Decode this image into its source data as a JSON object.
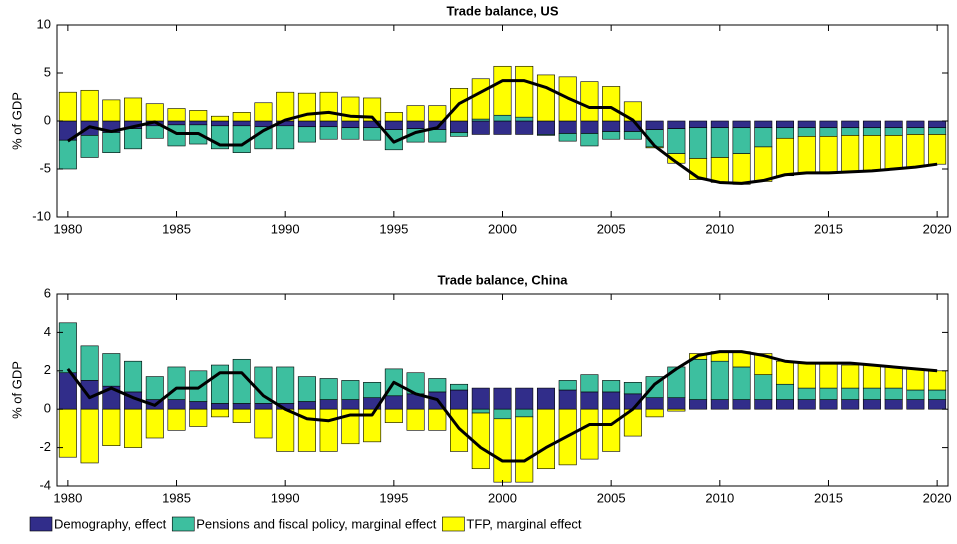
{
  "chart_data": [
    {
      "type": "bar",
      "title": "Trade balance, US",
      "y_label": "% of GDP",
      "x": [
        1980,
        1981,
        1982,
        1983,
        1984,
        1985,
        1986,
        1987,
        1988,
        1989,
        1990,
        1991,
        1992,
        1993,
        1994,
        1995,
        1996,
        1997,
        1998,
        1999,
        2000,
        2001,
        2002,
        2003,
        2004,
        2005,
        2006,
        2007,
        2008,
        2009,
        2010,
        2011,
        2012,
        2013,
        2014,
        2015,
        2016,
        2017,
        2018,
        2019,
        2020
      ],
      "xlim": [
        1979.5,
        2020.5
      ],
      "xticks": [
        1980,
        1985,
        1990,
        1995,
        2000,
        2005,
        2010,
        2015,
        2020
      ],
      "ylim": [
        -10,
        10
      ],
      "yticks": [
        -10,
        -5,
        0,
        5,
        10
      ],
      "stacked": true,
      "series": [
        {
          "name": "Demography, effect",
          "color": "#312d8a",
          "values": [
            -2.0,
            -1.5,
            -1.2,
            -0.8,
            -0.5,
            -0.4,
            -0.4,
            -0.5,
            -0.5,
            -0.6,
            -0.5,
            -0.6,
            -0.6,
            -0.7,
            -0.7,
            -0.9,
            -0.8,
            -0.9,
            -1.2,
            -1.4,
            -1.4,
            -1.4,
            -1.4,
            -1.3,
            -1.3,
            -1.1,
            -1.1,
            -0.9,
            -0.8,
            -0.7,
            -0.7,
            -0.7,
            -0.7,
            -0.7,
            -0.7,
            -0.7,
            -0.7,
            -0.7,
            -0.7,
            -0.7,
            -0.7
          ]
        },
        {
          "name": "Pensions and fiscal policy, marginal effect",
          "color": "#3dbf9f",
          "values": [
            -3.0,
            -2.3,
            -2.1,
            -2.1,
            -1.3,
            -2.2,
            -2.0,
            -2.4,
            -2.8,
            -2.3,
            -2.4,
            -1.6,
            -1.3,
            -1.2,
            -1.3,
            -2.1,
            -1.4,
            -1.3,
            -0.4,
            0.2,
            0.6,
            0.4,
            -0.1,
            -0.8,
            -1.3,
            -0.8,
            -0.8,
            -1.8,
            -2.6,
            -3.2,
            -3.1,
            -2.7,
            -2.0,
            -1.1,
            -0.9,
            -0.9,
            -0.8,
            -0.8,
            -0.8,
            -0.7,
            -0.7
          ]
        },
        {
          "name": "TFP, marginal effect",
          "color": "#ffff00",
          "values": [
            3.0,
            3.2,
            2.2,
            2.4,
            1.8,
            1.3,
            1.1,
            0.5,
            0.9,
            1.9,
            3.0,
            2.9,
            3.0,
            2.5,
            2.4,
            0.9,
            1.6,
            1.6,
            3.4,
            4.2,
            5.1,
            5.3,
            4.8,
            4.6,
            4.1,
            3.6,
            2.0,
            -0.1,
            -1.0,
            -2.2,
            -2.6,
            -3.2,
            -3.6,
            -3.9,
            -3.8,
            -3.8,
            -3.8,
            -3.7,
            -3.5,
            -3.4,
            -3.1
          ]
        },
        {
          "type": "line",
          "color": "#000000",
          "values": [
            -2.1,
            -0.6,
            -1.1,
            -0.6,
            -0.1,
            -1.3,
            -1.3,
            -2.5,
            -2.5,
            -1.0,
            0.1,
            0.7,
            0.9,
            0.5,
            0.4,
            -2.2,
            -1.2,
            -0.7,
            1.8,
            3.0,
            4.2,
            4.2,
            3.5,
            2.4,
            1.4,
            1.4,
            0.1,
            -2.6,
            -4.3,
            -5.9,
            -6.4,
            -6.5,
            -6.2,
            -5.6,
            -5.4,
            -5.4,
            -5.3,
            -5.2,
            -5.0,
            -4.8,
            -4.5
          ]
        }
      ]
    },
    {
      "type": "bar",
      "title": "Trade balance, China",
      "y_label": "% of GDP",
      "x": [
        1980,
        1981,
        1982,
        1983,
        1984,
        1985,
        1986,
        1987,
        1988,
        1989,
        1990,
        1991,
        1992,
        1993,
        1994,
        1995,
        1996,
        1997,
        1998,
        1999,
        2000,
        2001,
        2002,
        2003,
        2004,
        2005,
        2006,
        2007,
        2008,
        2009,
        2010,
        2011,
        2012,
        2013,
        2014,
        2015,
        2016,
        2017,
        2018,
        2019,
        2020
      ],
      "xlim": [
        1979.5,
        2020.5
      ],
      "xticks": [
        1980,
        1985,
        1990,
        1995,
        2000,
        2005,
        2010,
        2015,
        2020
      ],
      "ylim": [
        -4,
        6
      ],
      "yticks": [
        -4,
        -2,
        0,
        2,
        4,
        6
      ],
      "stacked": true,
      "series": [
        {
          "name": "Demography, effect",
          "color": "#312d8a",
          "values": [
            1.9,
            1.5,
            1.2,
            0.9,
            0.5,
            0.5,
            0.4,
            0.3,
            0.3,
            0.3,
            0.3,
            0.4,
            0.5,
            0.5,
            0.6,
            0.7,
            0.8,
            0.9,
            1.0,
            1.1,
            1.1,
            1.1,
            1.1,
            1.0,
            0.9,
            0.9,
            0.8,
            0.6,
            0.6,
            0.5,
            0.5,
            0.5,
            0.5,
            0.5,
            0.5,
            0.5,
            0.5,
            0.5,
            0.5,
            0.5,
            0.5
          ]
        },
        {
          "name": "Pensions and fiscal policy, marginal effect",
          "color": "#3dbf9f",
          "values": [
            2.6,
            1.8,
            1.7,
            1.6,
            1.2,
            1.7,
            1.6,
            2.0,
            2.3,
            1.9,
            1.9,
            1.3,
            1.1,
            1.0,
            0.8,
            1.4,
            1.1,
            0.7,
            0.3,
            -0.2,
            -0.5,
            -0.4,
            0.0,
            0.5,
            0.9,
            0.6,
            0.6,
            1.1,
            1.6,
            2.1,
            2.0,
            1.7,
            1.3,
            0.8,
            0.6,
            0.6,
            0.6,
            0.6,
            0.6,
            0.5,
            0.5
          ]
        },
        {
          "name": "TFP, marginal effect",
          "color": "#ffff00",
          "values": [
            -2.5,
            -2.8,
            -1.9,
            -2.0,
            -1.5,
            -1.1,
            -0.9,
            -0.4,
            -0.7,
            -1.5,
            -2.2,
            -2.2,
            -2.2,
            -1.8,
            -1.7,
            -0.7,
            -1.1,
            -1.1,
            -2.2,
            -2.9,
            -3.3,
            -3.4,
            -3.1,
            -2.9,
            -2.6,
            -2.2,
            -1.4,
            -0.4,
            -0.1,
            0.3,
            0.5,
            0.8,
            1.1,
            1.2,
            1.3,
            1.3,
            1.2,
            1.2,
            1.1,
            1.1,
            1.0
          ]
        },
        {
          "type": "line",
          "color": "#000000",
          "values": [
            2.1,
            0.6,
            1.1,
            0.6,
            0.2,
            1.1,
            1.1,
            1.9,
            1.9,
            0.7,
            0.0,
            -0.5,
            -0.6,
            -0.3,
            -0.3,
            1.4,
            0.8,
            0.5,
            -1.0,
            -2.0,
            -2.7,
            -2.7,
            -2.0,
            -1.4,
            -0.8,
            -0.8,
            0.0,
            1.3,
            2.1,
            2.8,
            3.0,
            3.0,
            2.8,
            2.5,
            2.4,
            2.4,
            2.4,
            2.3,
            2.2,
            2.1,
            2.0
          ]
        }
      ]
    }
  ]
}
